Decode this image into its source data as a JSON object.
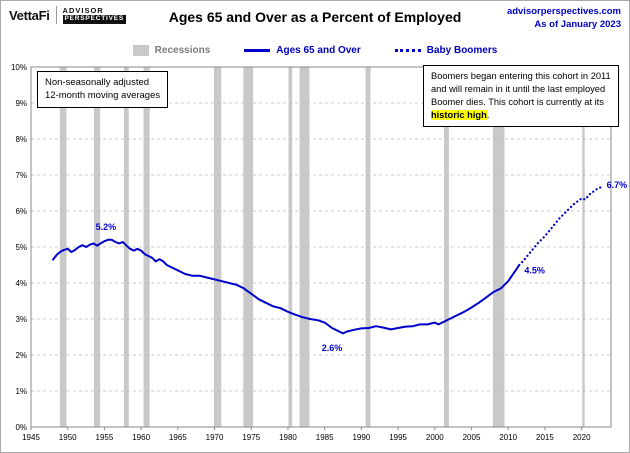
{
  "header": {
    "brand_vettafi": "VettaFi",
    "brand_advisor": "ADVISOR",
    "brand_perspectives": "PERSPECTIVES",
    "title": "Ages 65 and Over as a Percent of Employed",
    "site": "advisorperspectives.com",
    "as_of": "As of January 2023"
  },
  "legend": {
    "recessions": {
      "label": "Recessions"
    },
    "ages": {
      "label": "Ages 65 and Over"
    },
    "boomers": {
      "label": "Baby Boomers"
    }
  },
  "notes": {
    "left_line1": "Non-seasonally adjusted",
    "left_line2": "12-month moving averages",
    "right_text": "Boomers began entering this cohort in 2011 and will remain in it until the last employed Boomer dies. This cohort is currently at its ",
    "right_highlight": "historic high",
    "right_tail": "."
  },
  "colors": {
    "line": "#0000cc",
    "recession": "#c9c9c9",
    "grid": "#bbbbbb",
    "frame": "#888888"
  },
  "chart_data": {
    "type": "line",
    "title": "Ages 65 and Over as a Percent of Employed",
    "xlim": [
      1945,
      2024
    ],
    "ylim": [
      0,
      10
    ],
    "grid": true,
    "legend_position": "top",
    "x_ticks": [
      1945,
      1950,
      1955,
      1960,
      1965,
      1970,
      1975,
      1980,
      1985,
      1990,
      1995,
      2000,
      2005,
      2010,
      2015,
      2020
    ],
    "y_ticks": [
      "0%",
      "1%",
      "2%",
      "3%",
      "4%",
      "5%",
      "6%",
      "7%",
      "8%",
      "9%",
      "10%"
    ],
    "series": [
      {
        "name": "Ages 65 and Over",
        "style": "solid",
        "color": "#0000cc",
        "points": [
          [
            1948,
            4.65
          ],
          [
            1948.5,
            4.78
          ],
          [
            1949,
            4.87
          ],
          [
            1949.5,
            4.92
          ],
          [
            1950,
            4.95
          ],
          [
            1950.5,
            4.86
          ],
          [
            1951,
            4.92
          ],
          [
            1951.5,
            5.0
          ],
          [
            1952,
            5.05
          ],
          [
            1952.5,
            5.0
          ],
          [
            1953,
            5.06
          ],
          [
            1953.5,
            5.1
          ],
          [
            1954,
            5.04
          ],
          [
            1954.5,
            5.1
          ],
          [
            1955,
            5.16
          ],
          [
            1955.5,
            5.2
          ],
          [
            1956,
            5.2
          ],
          [
            1956.5,
            5.14
          ],
          [
            1957,
            5.1
          ],
          [
            1957.5,
            5.14
          ],
          [
            1958,
            5.04
          ],
          [
            1958.5,
            4.95
          ],
          [
            1959,
            4.9
          ],
          [
            1959.5,
            4.95
          ],
          [
            1960,
            4.9
          ],
          [
            1960.5,
            4.8
          ],
          [
            1961,
            4.75
          ],
          [
            1961.5,
            4.7
          ],
          [
            1962,
            4.6
          ],
          [
            1962.5,
            4.66
          ],
          [
            1963,
            4.6
          ],
          [
            1963.5,
            4.5
          ],
          [
            1964,
            4.45
          ],
          [
            1965,
            4.35
          ],
          [
            1966,
            4.25
          ],
          [
            1967,
            4.2
          ],
          [
            1968,
            4.2
          ],
          [
            1969,
            4.15
          ],
          [
            1970,
            4.1
          ],
          [
            1971,
            4.05
          ],
          [
            1972,
            4.0
          ],
          [
            1973,
            3.95
          ],
          [
            1974,
            3.85
          ],
          [
            1975,
            3.7
          ],
          [
            1976,
            3.55
          ],
          [
            1977,
            3.45
          ],
          [
            1978,
            3.35
          ],
          [
            1979,
            3.3
          ],
          [
            1980,
            3.2
          ],
          [
            1981,
            3.12
          ],
          [
            1982,
            3.05
          ],
          [
            1983,
            3.0
          ],
          [
            1984,
            2.97
          ],
          [
            1985,
            2.9
          ],
          [
            1986,
            2.75
          ],
          [
            1987,
            2.65
          ],
          [
            1987.5,
            2.6
          ],
          [
            1988,
            2.65
          ],
          [
            1989,
            2.7
          ],
          [
            1990,
            2.74
          ],
          [
            1991,
            2.75
          ],
          [
            1992,
            2.8
          ],
          [
            1993,
            2.76
          ],
          [
            1994,
            2.71
          ],
          [
            1995,
            2.75
          ],
          [
            1996,
            2.79
          ],
          [
            1997,
            2.8
          ],
          [
            1998,
            2.85
          ],
          [
            1999,
            2.85
          ],
          [
            2000,
            2.9
          ],
          [
            2000.5,
            2.85
          ],
          [
            2001,
            2.9
          ],
          [
            2002,
            3.0
          ],
          [
            2003,
            3.1
          ],
          [
            2004,
            3.2
          ],
          [
            2005,
            3.32
          ],
          [
            2006,
            3.45
          ],
          [
            2007,
            3.6
          ],
          [
            2008,
            3.75
          ],
          [
            2009,
            3.85
          ],
          [
            2010,
            4.05
          ],
          [
            2010.5,
            4.2
          ],
          [
            2011,
            4.35
          ],
          [
            2011.5,
            4.5
          ]
        ]
      },
      {
        "name": "Baby Boomers",
        "style": "dotted",
        "color": "#0000cc",
        "points": [
          [
            2011.5,
            4.5
          ],
          [
            2012,
            4.6
          ],
          [
            2013,
            4.85
          ],
          [
            2014,
            5.1
          ],
          [
            2015,
            5.3
          ],
          [
            2016,
            5.55
          ],
          [
            2017,
            5.8
          ],
          [
            2018,
            6.0
          ],
          [
            2019,
            6.2
          ],
          [
            2020,
            6.35
          ],
          [
            2020.5,
            6.32
          ],
          [
            2021,
            6.45
          ],
          [
            2022,
            6.6
          ],
          [
            2023,
            6.7
          ]
        ]
      }
    ],
    "recessions": [
      [
        1948.92,
        1949.83
      ],
      [
        1953.58,
        1954.42
      ],
      [
        1957.67,
        1958.33
      ],
      [
        1960.33,
        1961.17
      ],
      [
        1969.92,
        1970.92
      ],
      [
        1973.92,
        1975.25
      ],
      [
        1980.08,
        1980.58
      ],
      [
        1981.58,
        1982.92
      ],
      [
        1990.58,
        1991.25
      ],
      [
        2001.25,
        2001.92
      ],
      [
        2007.92,
        2009.5
      ],
      [
        2020.08,
        2020.42
      ]
    ],
    "value_labels": [
      {
        "text": "5.2%",
        "x": 1955.2,
        "y": 5.55,
        "anchor": "middle"
      },
      {
        "text": "2.6%",
        "x": 1986.0,
        "y": 2.2,
        "anchor": "middle"
      },
      {
        "text": "4.5%",
        "x": 2012.2,
        "y": 4.35,
        "anchor": "start"
      },
      {
        "text": "6.7%",
        "x": 2023.4,
        "y": 6.72,
        "anchor": "start"
      }
    ]
  }
}
